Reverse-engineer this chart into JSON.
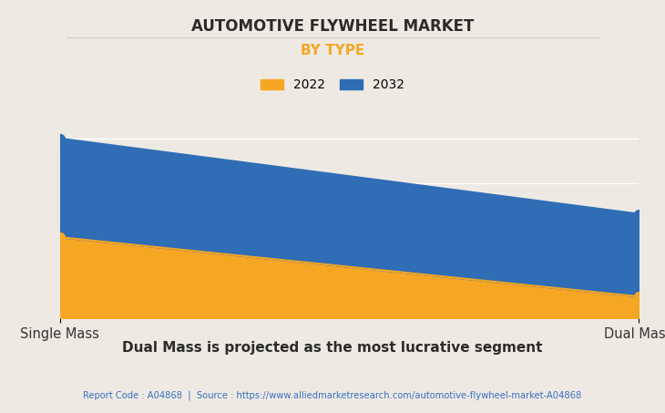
{
  "title": "AUTOMOTIVE FLYWHEEL MARKET",
  "subtitle": "BY TYPE",
  "subtitle_color": "#F5A623",
  "background_color": "#EEEAE3",
  "plot_bg_color": "#EEEAE3",
  "categories": [
    "Single Mass",
    "Dual Mass"
  ],
  "series_2022": [
    0.45,
    0.12
  ],
  "series_2032": [
    1.0,
    0.58
  ],
  "color_2022": "#F5A623",
  "color_2032": "#2F6DB5",
  "legend_labels": [
    "2022",
    "2032"
  ],
  "subtitle_text": "Dual Mass is projected as the most lucrative segment",
  "footer_text": "Report Code : A04868  |  Source : https://www.alliedmarketresearch.com/automotive-flywheel-market-A04868",
  "footer_color": "#3a6fc4",
  "title_font_size": 12,
  "subtitle_font_size": 11,
  "marker_size": 7
}
